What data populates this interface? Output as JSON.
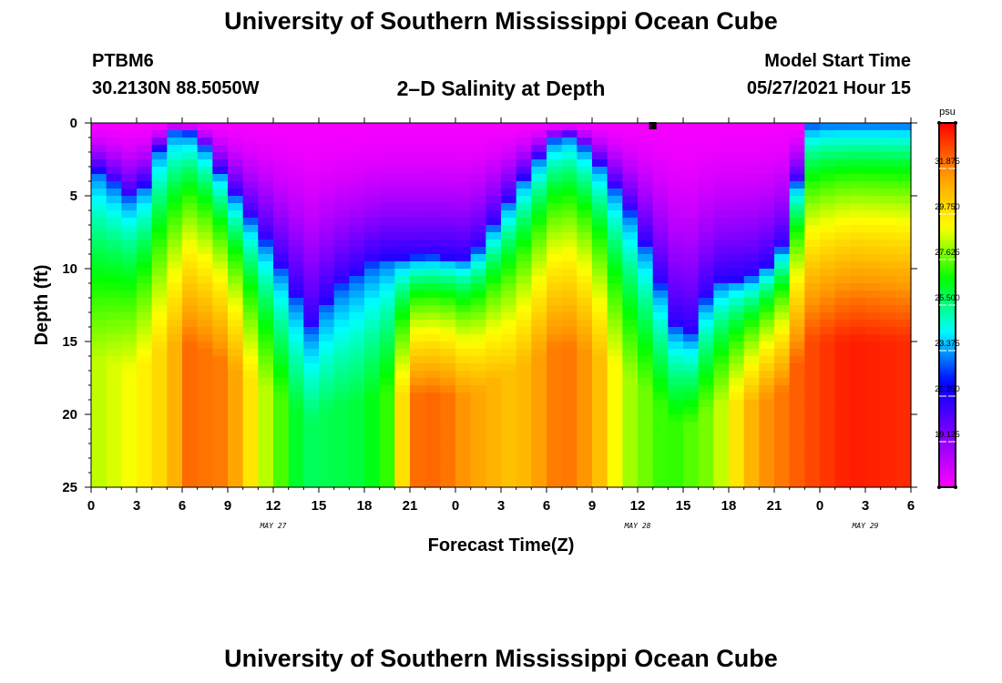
{
  "header": {
    "title": "University of Southern Mississippi Ocean Cube",
    "station_id": "PTBM6",
    "coordinates": "30.2130N  88.5050W",
    "subtitle": "2–D Salinity at Depth",
    "model_start_label": "Model Start Time",
    "model_start_value": "05/27/2021 Hour 15"
  },
  "footer": {
    "title": "University of Southern Mississippi Ocean Cube"
  },
  "chart_data": {
    "type": "heatmap",
    "title": "2–D Salinity at Depth",
    "xlabel": "Forecast Time(Z)",
    "ylabel": "Depth (ft)",
    "x_hours": [
      0,
      54
    ],
    "x_ticks": [
      "0",
      "3",
      "6",
      "9",
      "12",
      "15",
      "18",
      "21",
      "0",
      "3",
      "6",
      "9",
      "12",
      "15",
      "18",
      "21",
      "0",
      "3",
      "6"
    ],
    "x_day_labels": [
      {
        "label": "MAY 27",
        "hour": 12
      },
      {
        "label": "MAY 28",
        "hour": 36
      },
      {
        "label": "MAY 29",
        "hour": 51
      }
    ],
    "y_range": [
      0,
      25
    ],
    "y_ticks": [
      "0",
      "5",
      "10",
      "15",
      "20",
      "25"
    ],
    "current_time_marker_hour": 37,
    "colorbar": {
      "unit": "psu",
      "range": [
        17,
        34
      ],
      "tick_values": [
        31.875,
        29.75,
        27.625,
        25.5,
        23.375,
        21.25,
        19.125
      ],
      "tick_labels": [
        "31.875",
        "29.750",
        "27.625",
        "25.500",
        "23.375",
        "21.250",
        "19.125"
      ],
      "colors": [
        "#ff00ff",
        "#8000ff",
        "#0000ff",
        "#00ffff",
        "#00ff00",
        "#ffff00",
        "#ff9900",
        "#ff0000"
      ]
    },
    "surface_layer_depth_ft": [
      {
        "hour": 0,
        "depth": 2.8
      },
      {
        "hour": 3,
        "depth": 5.5
      },
      {
        "hour": 5,
        "depth": 0.5
      },
      {
        "hour": 7,
        "depth": 0.8
      },
      {
        "hour": 9.5,
        "depth": 5.0
      },
      {
        "hour": 12,
        "depth": 9.0
      },
      {
        "hour": 14.5,
        "depth": 14.0
      },
      {
        "hour": 16,
        "depth": 11.5
      },
      {
        "hour": 19,
        "depth": 9.3
      },
      {
        "hour": 23,
        "depth": 9.2
      },
      {
        "hour": 25,
        "depth": 9.5
      },
      {
        "hour": 29,
        "depth": 3.0
      },
      {
        "hour": 31,
        "depth": 0.5
      },
      {
        "hour": 33,
        "depth": 2.0
      },
      {
        "hour": 36,
        "depth": 7.0
      },
      {
        "hour": 38.5,
        "depth": 14.0
      },
      {
        "hour": 39.5,
        "depth": 14.5
      },
      {
        "hour": 41,
        "depth": 11.0
      },
      {
        "hour": 44,
        "depth": 10.5
      },
      {
        "hour": 46,
        "depth": 8.0
      },
      {
        "hour": 47,
        "depth": 0.2
      },
      {
        "hour": 48,
        "depth": 0.0
      },
      {
        "hour": 54,
        "depth": 0.0
      }
    ],
    "bottom_max_salinity_psu": [
      {
        "hour": 0,
        "max": 28.4
      },
      {
        "hour": 3,
        "max": 29.2
      },
      {
        "hour": 5,
        "max": 30.3
      },
      {
        "hour": 6.5,
        "max": 32.3
      },
      {
        "hour": 9,
        "max": 32.0
      },
      {
        "hour": 11,
        "max": 29.0
      },
      {
        "hour": 14,
        "max": 25.8
      },
      {
        "hour": 16,
        "max": 26.0
      },
      {
        "hour": 18,
        "max": 26.2
      },
      {
        "hour": 20,
        "max": 27.5
      },
      {
        "hour": 21,
        "max": 32.2
      },
      {
        "hour": 23,
        "max": 32.4
      },
      {
        "hour": 25,
        "max": 31.4
      },
      {
        "hour": 28,
        "max": 30.5
      },
      {
        "hour": 31,
        "max": 32.3
      },
      {
        "hour": 33,
        "max": 31.4
      },
      {
        "hour": 35,
        "max": 28.5
      },
      {
        "hour": 38,
        "max": 27.0
      },
      {
        "hour": 41,
        "max": 28.0
      },
      {
        "hour": 44,
        "max": 31.5
      },
      {
        "hour": 47,
        "max": 32.7
      },
      {
        "hour": 50,
        "max": 33.6
      },
      {
        "hour": 54,
        "max": 33.3
      }
    ]
  }
}
